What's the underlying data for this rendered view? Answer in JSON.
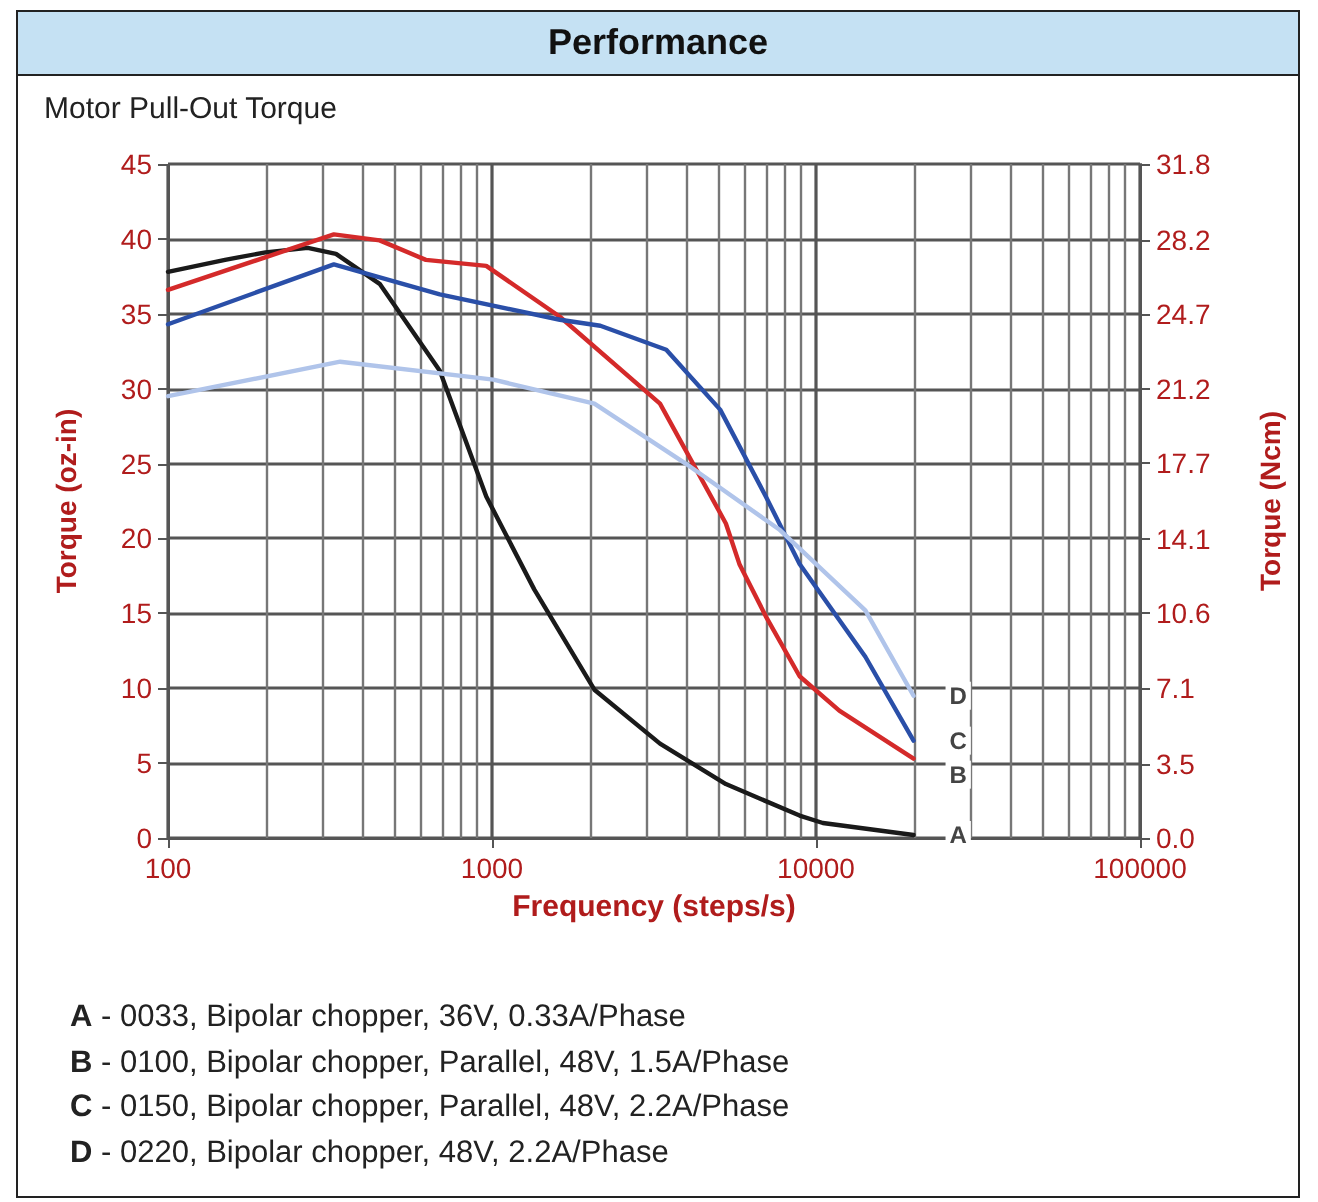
{
  "chart_data": {
    "type": "line",
    "title": "Performance",
    "subtitle": "Motor Pull-Out Torque",
    "xlabel": "Frequency (steps/s)",
    "ylabel": "Torque (oz-in)",
    "y2label": "Torque (Ncm)",
    "log": "x",
    "grid": true,
    "legend": false,
    "marker": "none",
    "line_style": "solid",
    "xlim": [
      100,
      100000
    ],
    "xticks": [
      100,
      1000,
      10000,
      100000
    ],
    "ylim": [
      0,
      45
    ],
    "yticks": [
      0,
      5,
      10,
      15,
      20,
      25,
      30,
      35,
      40,
      45
    ],
    "y2lim": [
      0,
      31.8
    ],
    "y2ticks": [
      {
        "value": 0,
        "label": "0.0"
      },
      3.5,
      7.1,
      10.6,
      14.1,
      17.7,
      21.2,
      24.7,
      28.2,
      31.8
    ],
    "series": [
      {
        "name": "A",
        "color": "#1a1a1a",
        "x": [
          100,
          150,
          200,
          270,
          330,
          450,
          690,
          960,
          1350,
          2070,
          3300,
          5270,
          8900,
          10500,
          20000
        ],
        "values": [
          37.8,
          38.6,
          39.1,
          39.4,
          39.0,
          37,
          31.2,
          22.8,
          16.6,
          9.9,
          6.3,
          3.6,
          1.5,
          1.0,
          0.2
        ]
      },
      {
        "name": "B",
        "color": "#d42a2a",
        "x": [
          100,
          325,
          450,
          625,
          960,
          1620,
          3300,
          5270,
          5800,
          7000,
          8900,
          11800,
          20000
        ],
        "values": [
          36.6,
          40.3,
          39.9,
          38.6,
          38.2,
          34.8,
          29,
          21,
          18.3,
          14.8,
          10.8,
          8.5,
          5.3
        ]
      },
      {
        "name": "C",
        "color": "#2a4fa8",
        "x": [
          100,
          325,
          690,
          1620,
          2160,
          3450,
          5060,
          7000,
          8900,
          14200,
          20000
        ],
        "values": [
          34.3,
          38.3,
          36.3,
          34.6,
          34.2,
          32.6,
          28.6,
          22.8,
          18.3,
          12.1,
          6.5
        ]
      },
      {
        "name": "D",
        "color": "#b0c4ea",
        "x": [
          100,
          340,
          1010,
          2070,
          3960,
          7700,
          14200,
          20000
        ],
        "values": [
          29.5,
          31.8,
          30.6,
          29,
          25,
          20.6,
          15.2,
          9.5
        ]
      }
    ],
    "annotations": [
      "A - 0033, Bipolar chopper, 36V, 0.33A/Phase",
      "B - 0100, Bipolar chopper, Parallel, 48V, 1.5A/Phase",
      "C - 0150, Bipolar chopper, Parallel, 48V, 2.2A/Phase",
      "D - 0220, Bipolar chopper, 48V, 2.2A/Phase"
    ]
  }
}
